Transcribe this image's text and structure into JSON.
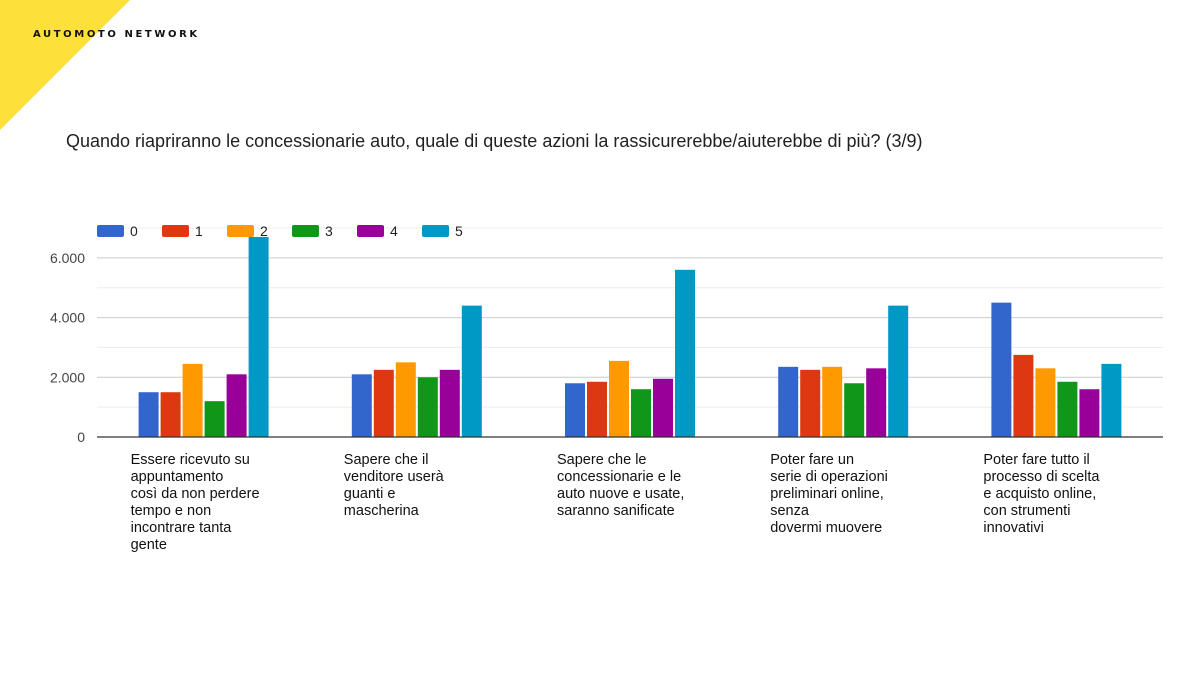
{
  "brand": "AUTOMOTO NETWORK",
  "colors": {
    "accent": "#fde03a"
  },
  "chart_data": {
    "type": "bar",
    "title": "Quando riapriranno le concessionarie auto, quale di queste azioni la rassicurerebbe/aiuterebbe di più?  (3/9)",
    "categories": [
      "Essere ricevuto su\nappuntamento\ncosì da non perdere\ntempo e non\nincontrare tanta\ngente",
      "Sapere che il\nvenditore userà\nguanti e\nmascherina",
      "Sapere che le\nconcessionarie e le\nauto nuove e usate,\nsaranno sanificate",
      "Poter fare un\nserie di operazioni\npreliminari online,\nsenza\ndovermi muovere",
      "Poter fare tutto il\nprocesso di scelta\ne acquisto online,\ncon strumenti\ninnovativi"
    ],
    "series": [
      {
        "name": "0",
        "color": "#3366cc",
        "values": [
          1500,
          2100,
          1800,
          2350,
          4500
        ]
      },
      {
        "name": "1",
        "color": "#dc3912",
        "values": [
          1500,
          2250,
          1850,
          2250,
          2750
        ]
      },
      {
        "name": "2",
        "color": "#ff9900",
        "values": [
          2450,
          2500,
          2550,
          2350,
          2300
        ]
      },
      {
        "name": "3",
        "color": "#109618",
        "values": [
          1200,
          2000,
          1600,
          1800,
          1850
        ]
      },
      {
        "name": "4",
        "color": "#990099",
        "values": [
          2100,
          2250,
          1950,
          2300,
          1600
        ]
      },
      {
        "name": "5",
        "color": "#0099c6",
        "values": [
          6700,
          4400,
          5600,
          4400,
          2450
        ]
      }
    ],
    "yticks": [
      {
        "value": 0,
        "label": "0"
      },
      {
        "value": 2000,
        "label": "2.000"
      },
      {
        "value": 4000,
        "label": "4.000"
      },
      {
        "value": 6000,
        "label": "6.000"
      }
    ],
    "ylim": [
      0,
      7000
    ],
    "grid": true,
    "legend": "top-left"
  }
}
